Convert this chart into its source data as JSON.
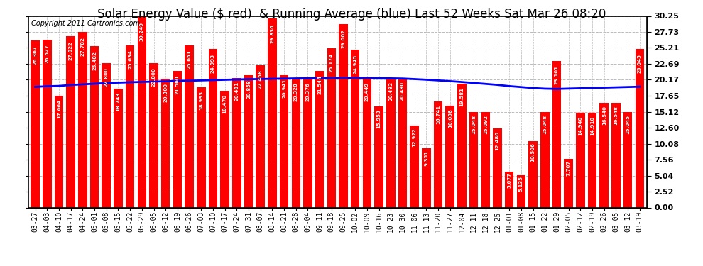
{
  "title": "Solar Energy Value ($ red)  & Running Average (blue) Last 52 Weeks Sat Mar 26 08:20",
  "copyright": "Copyright 2011 Cartronics.com",
  "bar_color": "#ff0000",
  "line_color": "#0000ff",
  "background_color": "#ffffff",
  "plot_bg_color": "#ffffff",
  "grid_color": "#bbbbbb",
  "categories": [
    "03-27",
    "04-03",
    "04-10",
    "04-17",
    "04-24",
    "05-01",
    "05-08",
    "05-15",
    "05-22",
    "05-29",
    "06-05",
    "06-12",
    "06-19",
    "06-26",
    "07-03",
    "07-10",
    "07-17",
    "07-24",
    "07-31",
    "08-07",
    "08-14",
    "08-21",
    "08-28",
    "09-04",
    "09-11",
    "09-18",
    "09-25",
    "10-02",
    "10-09",
    "10-16",
    "10-23",
    "10-30",
    "11-06",
    "11-13",
    "11-20",
    "11-27",
    "12-04",
    "12-11",
    "12-18",
    "12-25",
    "01-01",
    "01-08",
    "01-15",
    "01-22",
    "01-29",
    "02-05",
    "02-12",
    "02-19",
    "02-26",
    "03-05",
    "03-12",
    "03-19"
  ],
  "values": [
    26.367,
    26.527,
    17.664,
    27.022,
    27.782,
    25.482,
    22.8,
    18.743,
    25.634,
    30.249,
    22.8,
    20.3,
    21.56,
    25.651,
    18.993,
    24.993,
    18.47,
    20.481,
    20.858,
    22.458,
    29.836,
    20.941,
    20.328,
    20.376,
    21.544,
    25.174,
    29.002,
    24.945,
    20.449,
    15.953,
    20.492,
    20.48,
    12.922,
    9.351,
    16.741,
    16.058,
    19.581,
    15.048,
    15.092,
    12.48,
    5.677,
    5.135,
    10.506,
    15.048,
    23.101,
    7.707,
    14.94,
    14.91,
    16.54,
    16.548,
    15.045,
    25.045
  ],
  "running_avg": [
    19.05,
    19.15,
    19.2,
    19.35,
    19.45,
    19.55,
    19.65,
    19.72,
    19.78,
    19.83,
    19.88,
    19.93,
    19.98,
    20.02,
    20.07,
    20.12,
    20.17,
    20.22,
    20.26,
    20.29,
    20.33,
    20.36,
    20.39,
    20.41,
    20.43,
    20.45,
    20.47,
    20.47,
    20.46,
    20.43,
    20.4,
    20.37,
    20.28,
    20.18,
    20.07,
    19.95,
    19.82,
    19.67,
    19.52,
    19.37,
    19.17,
    19.02,
    18.87,
    18.77,
    18.73,
    18.78,
    18.83,
    18.88,
    18.93,
    18.98,
    19.03,
    19.08
  ],
  "ylim": [
    0,
    30.25
  ],
  "yticks_right": [
    0.0,
    2.52,
    5.04,
    7.56,
    10.08,
    12.6,
    15.12,
    17.65,
    20.17,
    22.69,
    25.21,
    27.73,
    30.25
  ],
  "title_fontsize": 12,
  "copyright_fontsize": 7,
  "tick_fontsize": 8,
  "bar_label_fontsize": 5.0
}
